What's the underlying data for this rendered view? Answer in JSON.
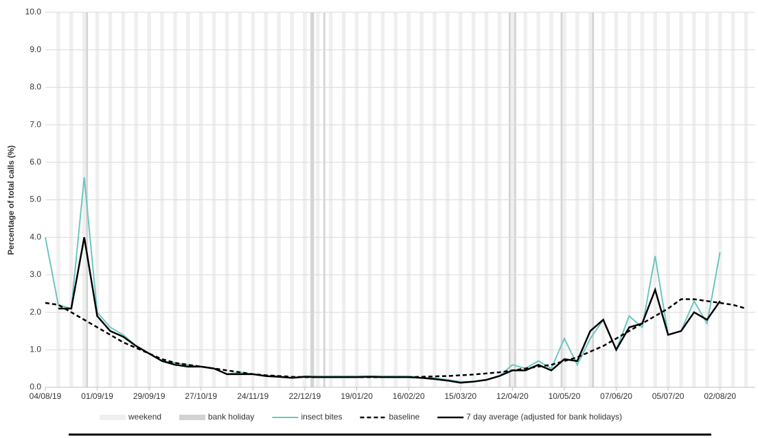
{
  "chart_data": {
    "type": "line",
    "y_label": "Percentage of total calls (%)",
    "x": [
      "04/08/19",
      "11/08/19",
      "18/08/19",
      "25/08/19",
      "01/09/19",
      "08/09/19",
      "15/09/19",
      "22/09/19",
      "29/09/19",
      "06/10/19",
      "13/10/19",
      "20/10/19",
      "27/10/19",
      "03/11/19",
      "10/11/19",
      "17/11/19",
      "24/11/19",
      "01/12/19",
      "08/12/19",
      "15/12/19",
      "22/12/19",
      "29/12/19",
      "05/01/20",
      "12/01/20",
      "19/01/20",
      "26/01/20",
      "02/02/20",
      "09/02/20",
      "16/02/20",
      "23/02/20",
      "01/03/20",
      "08/03/20",
      "15/03/20",
      "22/03/20",
      "29/03/20",
      "05/04/20",
      "12/04/20",
      "19/04/20",
      "26/04/20",
      "03/05/20",
      "10/05/20",
      "17/05/20",
      "24/05/20",
      "31/05/20",
      "07/06/20",
      "14/06/20",
      "21/06/20",
      "28/06/20",
      "05/07/20",
      "12/07/20",
      "19/07/20",
      "26/07/20",
      "02/08/20",
      "09/08/20",
      "16/08/20"
    ],
    "series": [
      {
        "name": "insect bites",
        "color": "#6cc5bf",
        "dash": false,
        "values": [
          4.0,
          2.2,
          2.1,
          5.6,
          2.0,
          1.6,
          1.4,
          1.1,
          0.9,
          0.7,
          0.65,
          0.6,
          0.55,
          0.5,
          0.35,
          0.4,
          0.35,
          0.3,
          0.3,
          0.25,
          0.3,
          0.3,
          0.3,
          0.3,
          0.3,
          0.3,
          0.3,
          0.3,
          0.3,
          0.25,
          0.25,
          0.2,
          0.15,
          0.15,
          0.2,
          0.3,
          0.6,
          0.5,
          0.7,
          0.5,
          1.3,
          0.6,
          1.3,
          1.8,
          1.0,
          1.9,
          1.6,
          3.5,
          1.4,
          1.5,
          2.3,
          1.7,
          3.6,
          null,
          null
        ]
      },
      {
        "name": "baseline",
        "color": "#000000",
        "dash": true,
        "values": [
          2.25,
          2.2,
          2.0,
          1.8,
          1.6,
          1.4,
          1.2,
          1.05,
          0.9,
          0.75,
          0.65,
          0.6,
          0.55,
          0.5,
          0.45,
          0.4,
          0.35,
          0.32,
          0.3,
          0.28,
          0.27,
          0.27,
          0.27,
          0.27,
          0.27,
          0.27,
          0.27,
          0.27,
          0.27,
          0.28,
          0.29,
          0.3,
          0.32,
          0.34,
          0.37,
          0.4,
          0.45,
          0.5,
          0.55,
          0.6,
          0.7,
          0.8,
          0.95,
          1.1,
          1.3,
          1.5,
          1.7,
          1.9,
          2.1,
          2.35,
          2.35,
          2.3,
          2.25,
          2.2,
          2.1
        ]
      },
      {
        "name": "7 day average (adjusted for bank holidays)",
        "color": "#000000",
        "dash": false,
        "values": [
          null,
          2.1,
          2.1,
          4.0,
          1.9,
          1.5,
          1.35,
          1.1,
          0.9,
          0.7,
          0.6,
          0.55,
          0.55,
          0.5,
          0.35,
          0.35,
          0.35,
          0.3,
          0.28,
          0.25,
          0.28,
          0.27,
          0.27,
          0.27,
          0.27,
          0.28,
          0.27,
          0.27,
          0.27,
          0.25,
          0.22,
          0.18,
          0.12,
          0.15,
          0.2,
          0.3,
          0.45,
          0.45,
          0.6,
          0.45,
          0.75,
          0.7,
          1.5,
          1.8,
          1.0,
          1.6,
          1.7,
          2.6,
          1.4,
          1.5,
          2.0,
          1.8,
          2.3,
          null,
          null
        ]
      }
    ],
    "shading": [
      {
        "name": "weekend",
        "color": "#efefef"
      },
      {
        "name": "bank holiday",
        "color": "#d3d3d3",
        "dates": [
          "26/08/19",
          "25/12/19",
          "26/12/19",
          "01/01/20",
          "10/04/20",
          "13/04/20",
          "08/05/20",
          "25/05/20"
        ]
      }
    ],
    "xlim": [
      "04/08/19",
      "21/08/20"
    ],
    "xticks": [
      "04/08/19",
      "01/09/19",
      "29/09/19",
      "27/10/19",
      "24/11/19",
      "22/12/19",
      "19/01/20",
      "16/02/20",
      "15/03/20",
      "12/04/20",
      "10/05/20",
      "07/06/20",
      "05/07/20",
      "02/08/20"
    ],
    "ylim": [
      0,
      10
    ],
    "yticks": [
      {
        "value": 0,
        "label": "0.0"
      },
      {
        "value": 1,
        "label": "1.0"
      },
      {
        "value": 2,
        "label": "2.0"
      },
      {
        "value": 3,
        "label": "3.0"
      },
      {
        "value": 4,
        "label": "4.0"
      },
      {
        "value": 5,
        "label": "5.0"
      },
      {
        "value": 6,
        "label": "6.0"
      },
      {
        "value": 7,
        "label": "7.0"
      },
      {
        "value": 8,
        "label": "8.0"
      },
      {
        "value": 9,
        "label": "9.0"
      },
      {
        "value": 10,
        "label": "10.0"
      }
    ],
    "grid": true
  }
}
